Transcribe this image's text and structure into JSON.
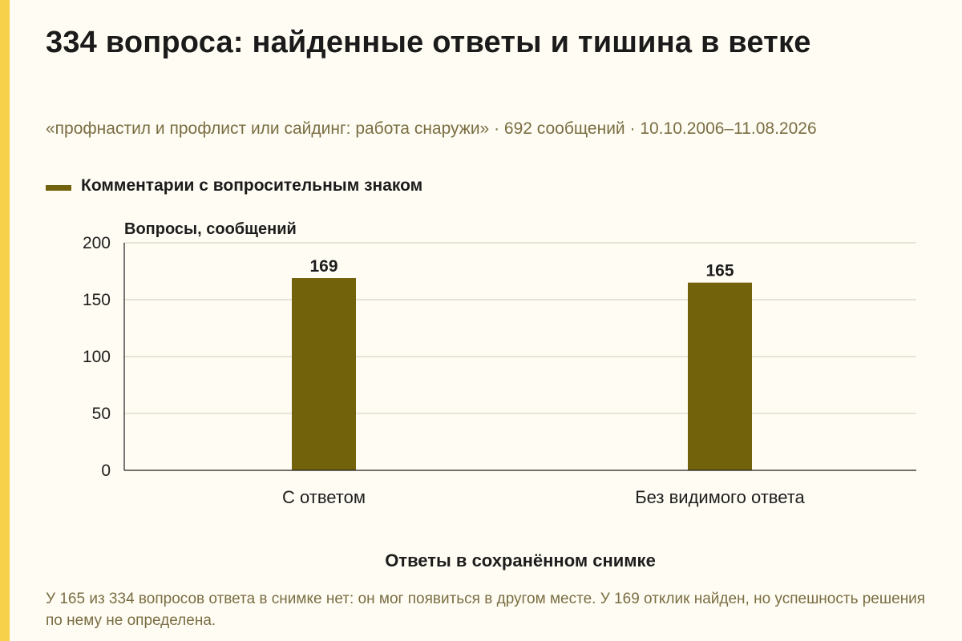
{
  "header": {
    "title": "334 вопроса: найденные ответы и тишина в ветке",
    "subtitle": "«профнастил и профлист или сайдинг: работа снаружи» · 692 сообщений · 10.10.2006–11.08.2026"
  },
  "legend": {
    "label": "Комментарии с вопросительным знаком"
  },
  "footnote": "У 165 из 334 вопросов ответа в снимке нет: он мог появиться в другом месте. У 169 отклик найден, но успешность решения по нему не определена.",
  "colors": {
    "bar": "#73620c",
    "background": "#fffdf3",
    "accent": "#f7d14a",
    "muted_text": "#7a6d43"
  },
  "chart_data": {
    "type": "bar",
    "categories": [
      "С ответом",
      "Без видимого ответа"
    ],
    "series": [
      {
        "name": "Комментарии с вопросительным знаком",
        "values": [
          169,
          165
        ]
      }
    ],
    "data_labels": [
      "169",
      "165"
    ],
    "title": "",
    "xlabel": "Ответы в сохранённом снимке",
    "ylabel": "Вопросы, сообщений",
    "ylim": [
      0,
      200
    ],
    "yticks": [
      0,
      50,
      100,
      150,
      200
    ],
    "grid": true,
    "legend_position": "top-left"
  }
}
